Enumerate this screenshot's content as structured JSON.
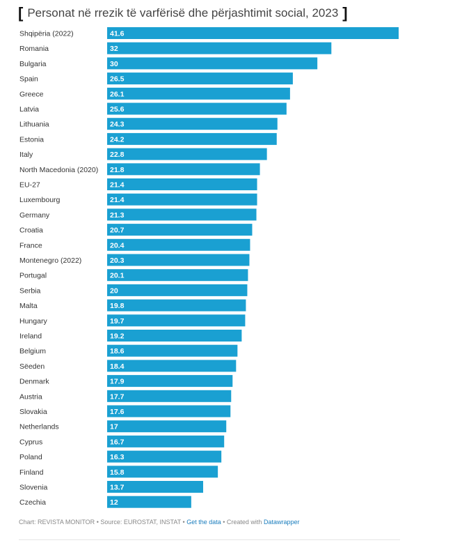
{
  "chart_data": {
    "type": "bar",
    "orientation": "horizontal",
    "title": "Personat në rrezik të varfërisë dhe përjashtimit social, 2023",
    "bar_color": "#1aa0d2",
    "xlim": [
      0,
      41.6
    ],
    "categories": [
      "Shqipëria (2022)",
      "Romania",
      "Bulgaria",
      "Spain",
      "Greece",
      "Latvia",
      "Lithuania",
      "Estonia",
      "Italy",
      "North Macedonia (2020)",
      "EU-27",
      "Luxembourg",
      "Germany",
      "Croatia",
      "France",
      "Montenegro (2022)",
      "Portugal",
      "Serbia",
      "Malta",
      "Hungary",
      "Ireland",
      "Belgium",
      "Sëeden",
      "Denmark",
      "Austria",
      "Slovakia",
      "Netherlands",
      "Cyprus",
      "Poland",
      "Finland",
      "Slovenia",
      "Czechia"
    ],
    "values": [
      41.6,
      32,
      30,
      26.5,
      26.1,
      25.6,
      24.3,
      24.2,
      22.8,
      21.8,
      21.4,
      21.4,
      21.3,
      20.7,
      20.4,
      20.3,
      20.1,
      20,
      19.8,
      19.7,
      19.2,
      18.6,
      18.4,
      17.9,
      17.7,
      17.6,
      17,
      16.7,
      16.3,
      15.8,
      13.7,
      12
    ]
  },
  "footer": {
    "chart_credit": "Chart: REVISTA MONITOR",
    "sep1": " • ",
    "source": "Source: EUROSTAT, INSTAT",
    "sep2": " • ",
    "get_data": "Get the data",
    "sep3": " • ",
    "created_with": "Created with ",
    "datawrapper": "Datawrapper"
  }
}
